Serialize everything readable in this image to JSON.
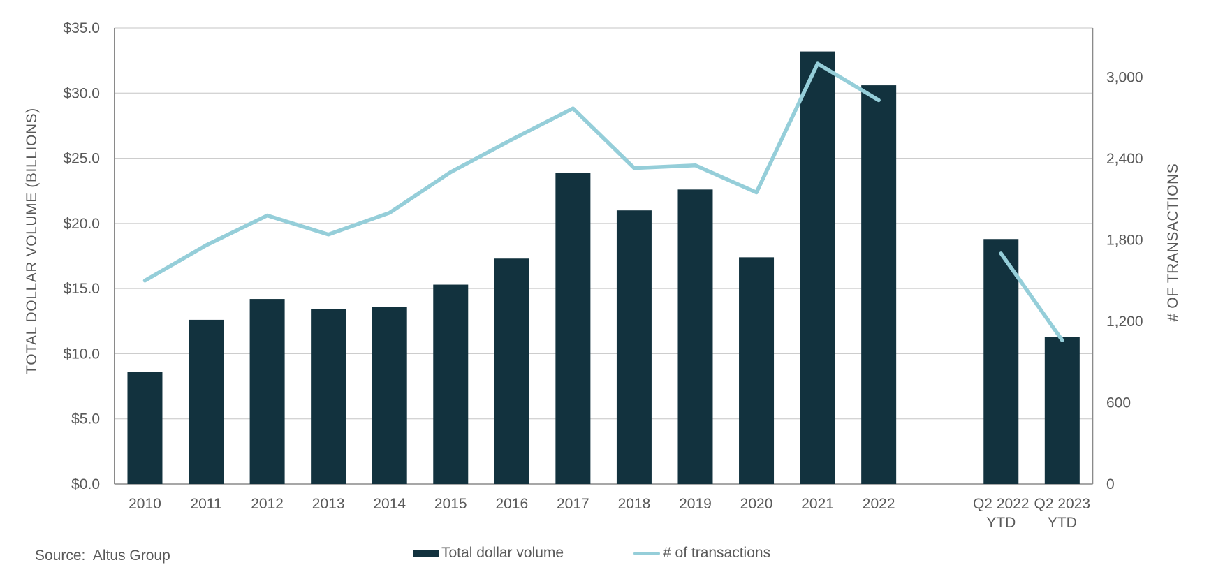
{
  "source_note": "Source:  Altus Group",
  "legend": [
    {
      "label": "Total dollar volume",
      "marker": "bar-swatch"
    },
    {
      "label": "# of transactions",
      "marker": "line-swatch"
    }
  ],
  "colors": {
    "bar": "#12323e",
    "line": "#95ced9",
    "grid": "#c6c6c6",
    "axis_line": "#8a8a8a",
    "text": "#595959"
  },
  "chart_data": {
    "type": "bar",
    "subtype": "combo-bar-line-dual-axis",
    "categories": [
      "2010",
      "2011",
      "2012",
      "2013",
      "2014",
      "2015",
      "2016",
      "2017",
      "2018",
      "2019",
      "2020",
      "2021",
      "2022",
      "",
      "Q2 2022 YTD",
      "Q2 2023 YTD"
    ],
    "series": [
      {
        "name": "Total dollar volume",
        "type": "bar",
        "axis": "left",
        "unit": "billions USD",
        "values": [
          8.6,
          12.6,
          14.2,
          13.4,
          13.6,
          15.3,
          17.3,
          23.9,
          21.0,
          22.6,
          17.4,
          33.2,
          30.6,
          null,
          18.8,
          11.3
        ]
      },
      {
        "name": "# of transactions",
        "type": "line",
        "axis": "right",
        "unit": "transactions",
        "values": [
          1500,
          1760,
          1980,
          1840,
          2000,
          2300,
          2540,
          2770,
          2330,
          2350,
          2150,
          3100,
          2830,
          null,
          1700,
          1060
        ]
      }
    ],
    "left_axis": {
      "title": "TOTAL DOLLAR VOLUME (BILLIONS)",
      "min": 0,
      "max": 35,
      "tick_step": 5,
      "tick_labels": [
        "$0.0",
        "$5.0",
        "$10.0",
        "$15.0",
        "$20.0",
        "$25.0",
        "$30.0",
        "$35.0"
      ]
    },
    "right_axis": {
      "title": "# OF TRANSACTIONS",
      "min": 0,
      "tick_step": 600,
      "tick_labels": [
        "0",
        "600",
        "1,200",
        "1,800",
        "2,400",
        "3,000"
      ],
      "tick_values": [
        0,
        600,
        1200,
        1800,
        2400,
        3000
      ],
      "plot_top_value": 3363
    },
    "grid": true,
    "legend_position": "bottom-center"
  }
}
